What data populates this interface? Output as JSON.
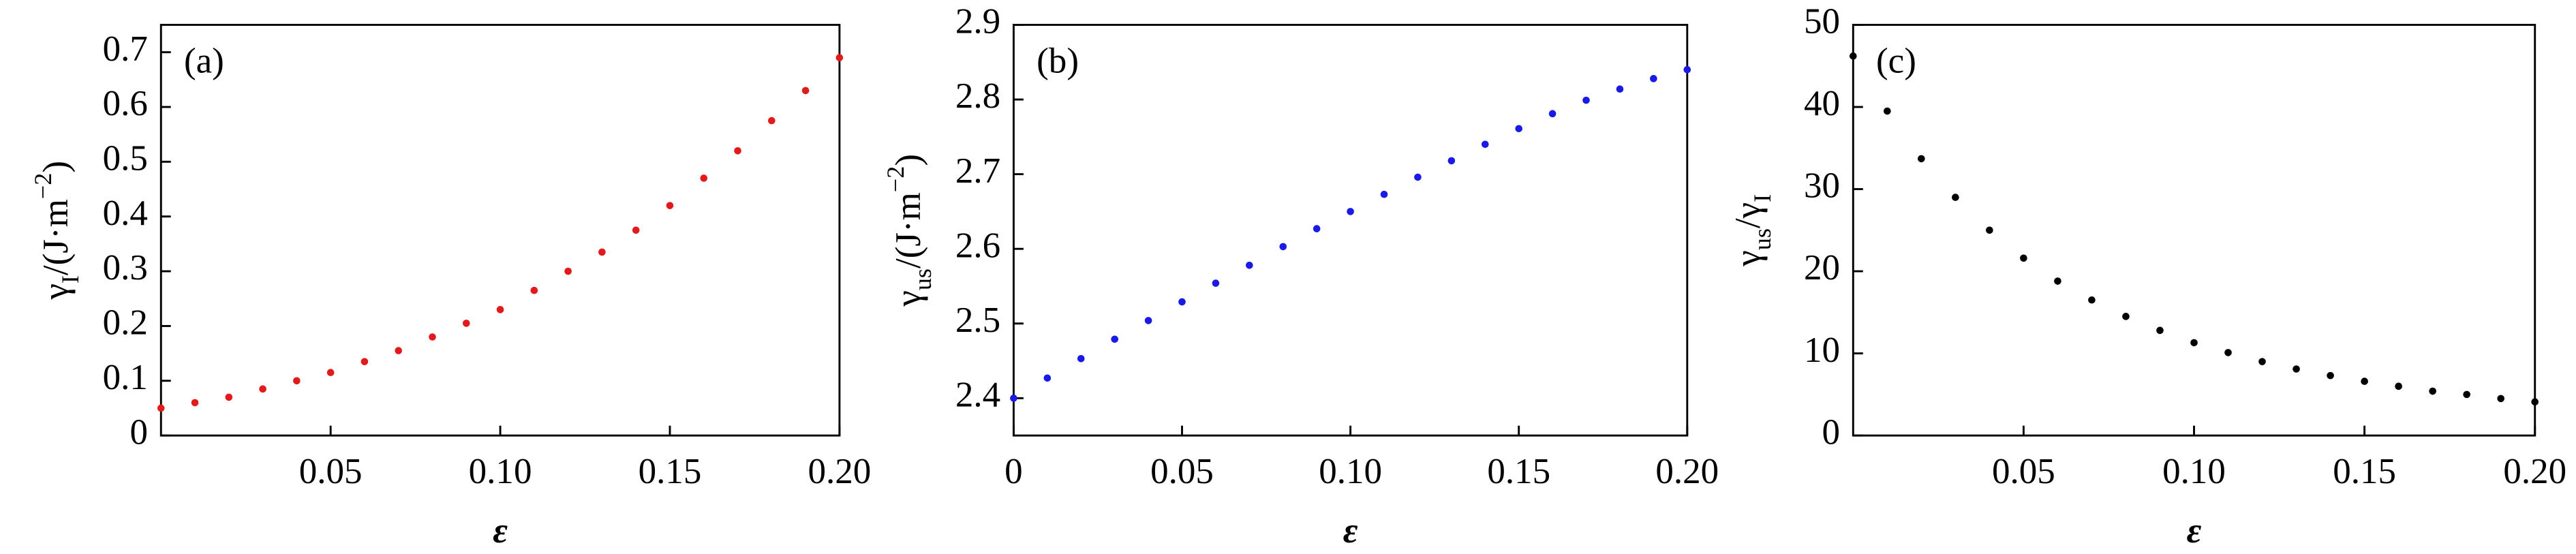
{
  "chart_data": [
    {
      "type": "scatter",
      "label": "(a)",
      "color": "#e31a1c",
      "xlabel": "ε",
      "ylabel": [
        [
          "γ",
          ""
        ],
        [
          "I",
          "sub"
        ],
        [
          "/(J·m",
          ""
        ],
        [
          "−2",
          "sup"
        ],
        [
          ")",
          ""
        ]
      ],
      "x": [
        0,
        0.01,
        0.02,
        0.03,
        0.04,
        0.05,
        0.06,
        0.07,
        0.08,
        0.09,
        0.1,
        0.11,
        0.12,
        0.13,
        0.14,
        0.15,
        0.16,
        0.17,
        0.18,
        0.19,
        0.2
      ],
      "values": [
        0.05,
        0.06,
        0.07,
        0.085,
        0.1,
        0.115,
        0.135,
        0.155,
        0.18,
        0.205,
        0.23,
        0.265,
        0.3,
        0.335,
        0.375,
        0.42,
        0.47,
        0.52,
        0.575,
        0.63,
        0.69
      ],
      "xlim": [
        0,
        0.2
      ],
      "xticks": [
        0.05,
        {
          "value": 0.1,
          "label": "0.10"
        },
        0.15,
        {
          "value": 0.2,
          "label": "0.20"
        }
      ],
      "ylim": [
        0,
        0.75
      ],
      "yticks": [
        0,
        0.1,
        0.2,
        0.3,
        0.4,
        0.5,
        0.6,
        0.7
      ]
    },
    {
      "type": "scatter",
      "label": "(b)",
      "color": "#1a1ae6",
      "xlabel": "ε",
      "ylabel": [
        [
          "γ",
          ""
        ],
        [
          "us",
          "sub"
        ],
        [
          "/(J·m",
          ""
        ],
        [
          "−2",
          "sup"
        ],
        [
          ")",
          ""
        ]
      ],
      "x": [
        0,
        0.01,
        0.02,
        0.03,
        0.04,
        0.05,
        0.06,
        0.07,
        0.08,
        0.09,
        0.1,
        0.11,
        0.12,
        0.13,
        0.14,
        0.15,
        0.16,
        0.17,
        0.18,
        0.19,
        0.2
      ],
      "values": [
        2.4,
        2.427,
        2.453,
        2.479,
        2.504,
        2.529,
        2.554,
        2.578,
        2.603,
        2.627,
        2.65,
        2.673,
        2.696,
        2.718,
        2.74,
        2.761,
        2.781,
        2.799,
        2.814,
        2.828,
        2.84
      ],
      "xlim": [
        0,
        0.2
      ],
      "xticks": [
        0,
        0.05,
        {
          "value": 0.1,
          "label": "0.10"
        },
        0.15,
        {
          "value": 0.2,
          "label": "0.20"
        }
      ],
      "ylim": [
        2.35,
        2.9
      ],
      "yticks": [
        2.4,
        2.5,
        2.6,
        2.7,
        2.8,
        2.9
      ]
    },
    {
      "type": "scatter",
      "label": "(c)",
      "color": "#000000",
      "xlabel": "ε",
      "ylabel": [
        [
          "γ",
          ""
        ],
        [
          "us",
          "sub"
        ],
        [
          "/γ",
          ""
        ],
        [
          "I",
          "sub"
        ]
      ],
      "x": [
        0,
        0.01,
        0.02,
        0.03,
        0.04,
        0.05,
        0.06,
        0.07,
        0.08,
        0.09,
        0.1,
        0.11,
        0.12,
        0.13,
        0.14,
        0.15,
        0.16,
        0.17,
        0.18,
        0.19,
        0.2
      ],
      "values": [
        46.2,
        39.5,
        33.7,
        29.0,
        25.0,
        21.6,
        18.8,
        16.5,
        14.5,
        12.8,
        11.3,
        10.1,
        9.0,
        8.1,
        7.3,
        6.6,
        6.0,
        5.4,
        5.0,
        4.5,
        4.1
      ],
      "xlim": [
        0,
        0.2
      ],
      "xticks": [
        0.05,
        {
          "value": 0.1,
          "label": "0.10"
        },
        0.15,
        {
          "value": 0.2,
          "label": "0.20"
        }
      ],
      "ylim": [
        0,
        50
      ],
      "yticks": [
        0,
        10,
        20,
        30,
        40,
        50
      ]
    }
  ]
}
